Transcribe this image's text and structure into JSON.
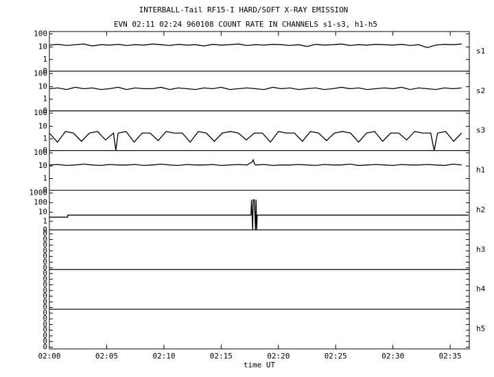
{
  "chart_data": {
    "type": "line",
    "title": "INTERBALL-Tail RF15-I HARD/SOFT X-RAY EMISSION",
    "subtitle": "EVN 02:11 02:24 960108  COUNT RATE IN CHANNELS s1-s3, h1-h5",
    "x_label": "time UT",
    "xlim": [
      0,
      36.67
    ],
    "xticks": [
      {
        "value": 0,
        "label": "02:00"
      },
      {
        "value": 5,
        "label": "02:05"
      },
      {
        "value": 10,
        "label": "02:10"
      },
      {
        "value": 15,
        "label": "02:15"
      },
      {
        "value": 20,
        "label": "02:20"
      },
      {
        "value": 25,
        "label": "02:25"
      },
      {
        "value": 30,
        "label": "02:30"
      },
      {
        "value": 35,
        "label": "02:35"
      }
    ],
    "color": "#000000",
    "panels": [
      {
        "name": "s1",
        "log": true,
        "log_offset": 0.15,
        "ylim": [
          0,
          150
        ],
        "yticks": [
          0,
          1,
          10,
          100
        ],
        "x": [
          0,
          0.75,
          1.5,
          2.25,
          3,
          3.75,
          4.5,
          5.25,
          6,
          6.75,
          7.5,
          8.25,
          9,
          9.75,
          10.5,
          11.25,
          12,
          12.75,
          13.5,
          14.25,
          15,
          15.75,
          16.5,
          17.25,
          18,
          18.75,
          19.5,
          20.25,
          21,
          21.75,
          22.5,
          23.25,
          24,
          24.75,
          25.5,
          26.25,
          27,
          27.75,
          28.5,
          29.25,
          30,
          30.75,
          31.5,
          32.25,
          33,
          33.75,
          34.5,
          35.25,
          36
        ],
        "values": [
          14,
          16,
          13,
          15,
          17,
          12,
          15,
          14,
          16,
          13,
          15,
          14,
          17,
          15,
          13,
          16,
          14,
          15,
          12,
          16,
          14,
          15,
          17,
          13,
          15,
          14,
          16,
          15,
          13,
          15,
          11,
          16,
          14,
          15,
          17,
          13,
          15,
          14,
          16,
          15,
          14,
          16,
          13,
          15,
          9,
          14,
          16,
          15,
          17
        ]
      },
      {
        "name": "s2",
        "log": true,
        "log_offset": 0.15,
        "ylim": [
          0,
          150
        ],
        "yticks": [
          0,
          1,
          10,
          100
        ],
        "x": [
          0,
          0.75,
          1.5,
          2.25,
          3,
          3.75,
          4.5,
          5.25,
          6,
          6.75,
          7.5,
          8.25,
          9,
          9.75,
          10.5,
          11.25,
          12,
          12.75,
          13.5,
          14.25,
          15,
          15.75,
          16.5,
          17.25,
          18,
          18.75,
          19.5,
          20.25,
          21,
          21.75,
          22.5,
          23.25,
          24,
          24.75,
          25.5,
          26.25,
          27,
          27.75,
          28.5,
          29.25,
          30,
          30.75,
          31.5,
          32.25,
          33,
          33.75,
          34.5,
          35.25,
          36
        ],
        "values": [
          7,
          8,
          6,
          9,
          7,
          8,
          6,
          7,
          9,
          6,
          8,
          7,
          7,
          9,
          6,
          8,
          7,
          6,
          8,
          7,
          9,
          6,
          7,
          8,
          7,
          6,
          9,
          7,
          8,
          6,
          7,
          8,
          6,
          7,
          9,
          7,
          8,
          6,
          7,
          8,
          7,
          9,
          6,
          8,
          7,
          6,
          8,
          7,
          8
        ]
      },
      {
        "name": "s3",
        "log": true,
        "log_offset": 0.15,
        "ylim": [
          0,
          150
        ],
        "yticks": [
          0,
          1,
          10,
          100
        ],
        "x": [
          0,
          0.7,
          1.4,
          2.1,
          2.8,
          3.5,
          4.2,
          4.9,
          5.6,
          5.8,
          6.0,
          6.7,
          7.4,
          8.1,
          8.8,
          9.5,
          10.2,
          10.9,
          11.6,
          12.3,
          13.0,
          13.7,
          14.4,
          15.1,
          15.8,
          16.5,
          17.2,
          17.9,
          18.6,
          19.3,
          20.0,
          20.7,
          21.4,
          22.1,
          22.8,
          23.5,
          24.2,
          24.9,
          25.6,
          26.3,
          27.0,
          27.7,
          28.4,
          29.1,
          29.8,
          30.5,
          31.2,
          31.9,
          32.6,
          33.3,
          33.6,
          33.9,
          34.6,
          35.3,
          36.0
        ],
        "values": [
          3,
          0.5,
          4,
          3,
          0.6,
          3,
          4,
          0.8,
          3,
          0,
          3,
          4,
          0.5,
          3,
          3,
          0.7,
          4,
          3,
          3,
          0.5,
          4,
          3,
          0.6,
          3,
          4,
          3,
          0.8,
          3,
          3,
          0.5,
          4,
          3,
          3,
          0.6,
          4,
          3,
          0.7,
          3,
          4,
          3,
          0.5,
          3,
          4,
          0.6,
          3,
          3,
          0.8,
          4,
          3,
          3,
          0,
          3,
          4,
          0.6,
          3
        ]
      },
      {
        "name": "h1",
        "log": true,
        "log_offset": 0.15,
        "ylim": [
          0,
          150
        ],
        "yticks": [
          0,
          1,
          10,
          100
        ],
        "x": [
          0,
          0.75,
          1.5,
          2.25,
          3,
          3.75,
          4.5,
          5.25,
          6,
          6.75,
          7.5,
          8.25,
          9,
          9.75,
          10.5,
          11.25,
          12,
          12.75,
          13.5,
          14.25,
          15,
          15.75,
          16.5,
          17.25,
          17.7,
          17.8,
          17.9,
          18,
          18.75,
          19.5,
          20.25,
          21,
          21.75,
          22.5,
          23.25,
          24,
          24.75,
          25.5,
          26.25,
          27,
          27.75,
          28.5,
          29.25,
          30,
          30.75,
          31.5,
          32.25,
          33,
          33.75,
          34.5,
          35.25,
          36
        ],
        "values": [
          12,
          13,
          11,
          12,
          14,
          12,
          11,
          13,
          12,
          12,
          13,
          11,
          12,
          14,
          12,
          11,
          13,
          12,
          12,
          13,
          11,
          12,
          13,
          12,
          20,
          30,
          16,
          12,
          13,
          11,
          12,
          12,
          13,
          12,
          11,
          13,
          12,
          12,
          14,
          11,
          12,
          13,
          12,
          11,
          13,
          12,
          12,
          13,
          12,
          11,
          14,
          12
        ]
      },
      {
        "name": "h2",
        "log": true,
        "log_offset": 0.15,
        "ylim": [
          0,
          2000
        ],
        "yticks": [
          0,
          1,
          10,
          100,
          1000
        ],
        "x": [
          0,
          1.6,
          1.6,
          17.6,
          17.65,
          17.75,
          17.8,
          17.9,
          18.0,
          18.05,
          18.1,
          18.15,
          36.6
        ],
        "values": [
          3,
          3,
          5,
          5,
          200,
          0,
          200,
          200,
          0,
          200,
          0,
          5,
          5
        ]
      },
      {
        "name": "h3",
        "log": true,
        "log_offset": 0,
        "ylim": [
          5e-08,
          0.5
        ],
        "yticks": [
          {
            "value": 1e-07,
            "label": "0"
          },
          {
            "value": 1e-06,
            "label": "0"
          },
          {
            "value": 1e-05,
            "label": "0"
          },
          {
            "value": 0.0001,
            "label": "0"
          },
          {
            "value": 0.001,
            "label": "0"
          },
          {
            "value": 0.01,
            "label": "0"
          },
          {
            "value": 0.1,
            "label": "0"
          }
        ]
      },
      {
        "name": "h4",
        "log": true,
        "log_offset": 0,
        "ylim": [
          5e-08,
          0.5
        ],
        "yticks": [
          {
            "value": 1e-07,
            "label": "0"
          },
          {
            "value": 1e-06,
            "label": "0"
          },
          {
            "value": 1e-05,
            "label": "0"
          },
          {
            "value": 0.0001,
            "label": "0"
          },
          {
            "value": 0.001,
            "label": "0"
          },
          {
            "value": 0.01,
            "label": "0"
          },
          {
            "value": 0.1,
            "label": "0"
          }
        ]
      },
      {
        "name": "h5",
        "log": true,
        "log_offset": 0,
        "ylim": [
          5e-08,
          0.5
        ],
        "yticks": [
          {
            "value": 1e-07,
            "label": "0"
          },
          {
            "value": 1e-06,
            "label": "0"
          },
          {
            "value": 1e-05,
            "label": "0"
          },
          {
            "value": 0.0001,
            "label": "0"
          },
          {
            "value": 0.001,
            "label": "0"
          },
          {
            "value": 0.01,
            "label": "0"
          },
          {
            "value": 0.1,
            "label": "0"
          }
        ]
      }
    ]
  }
}
